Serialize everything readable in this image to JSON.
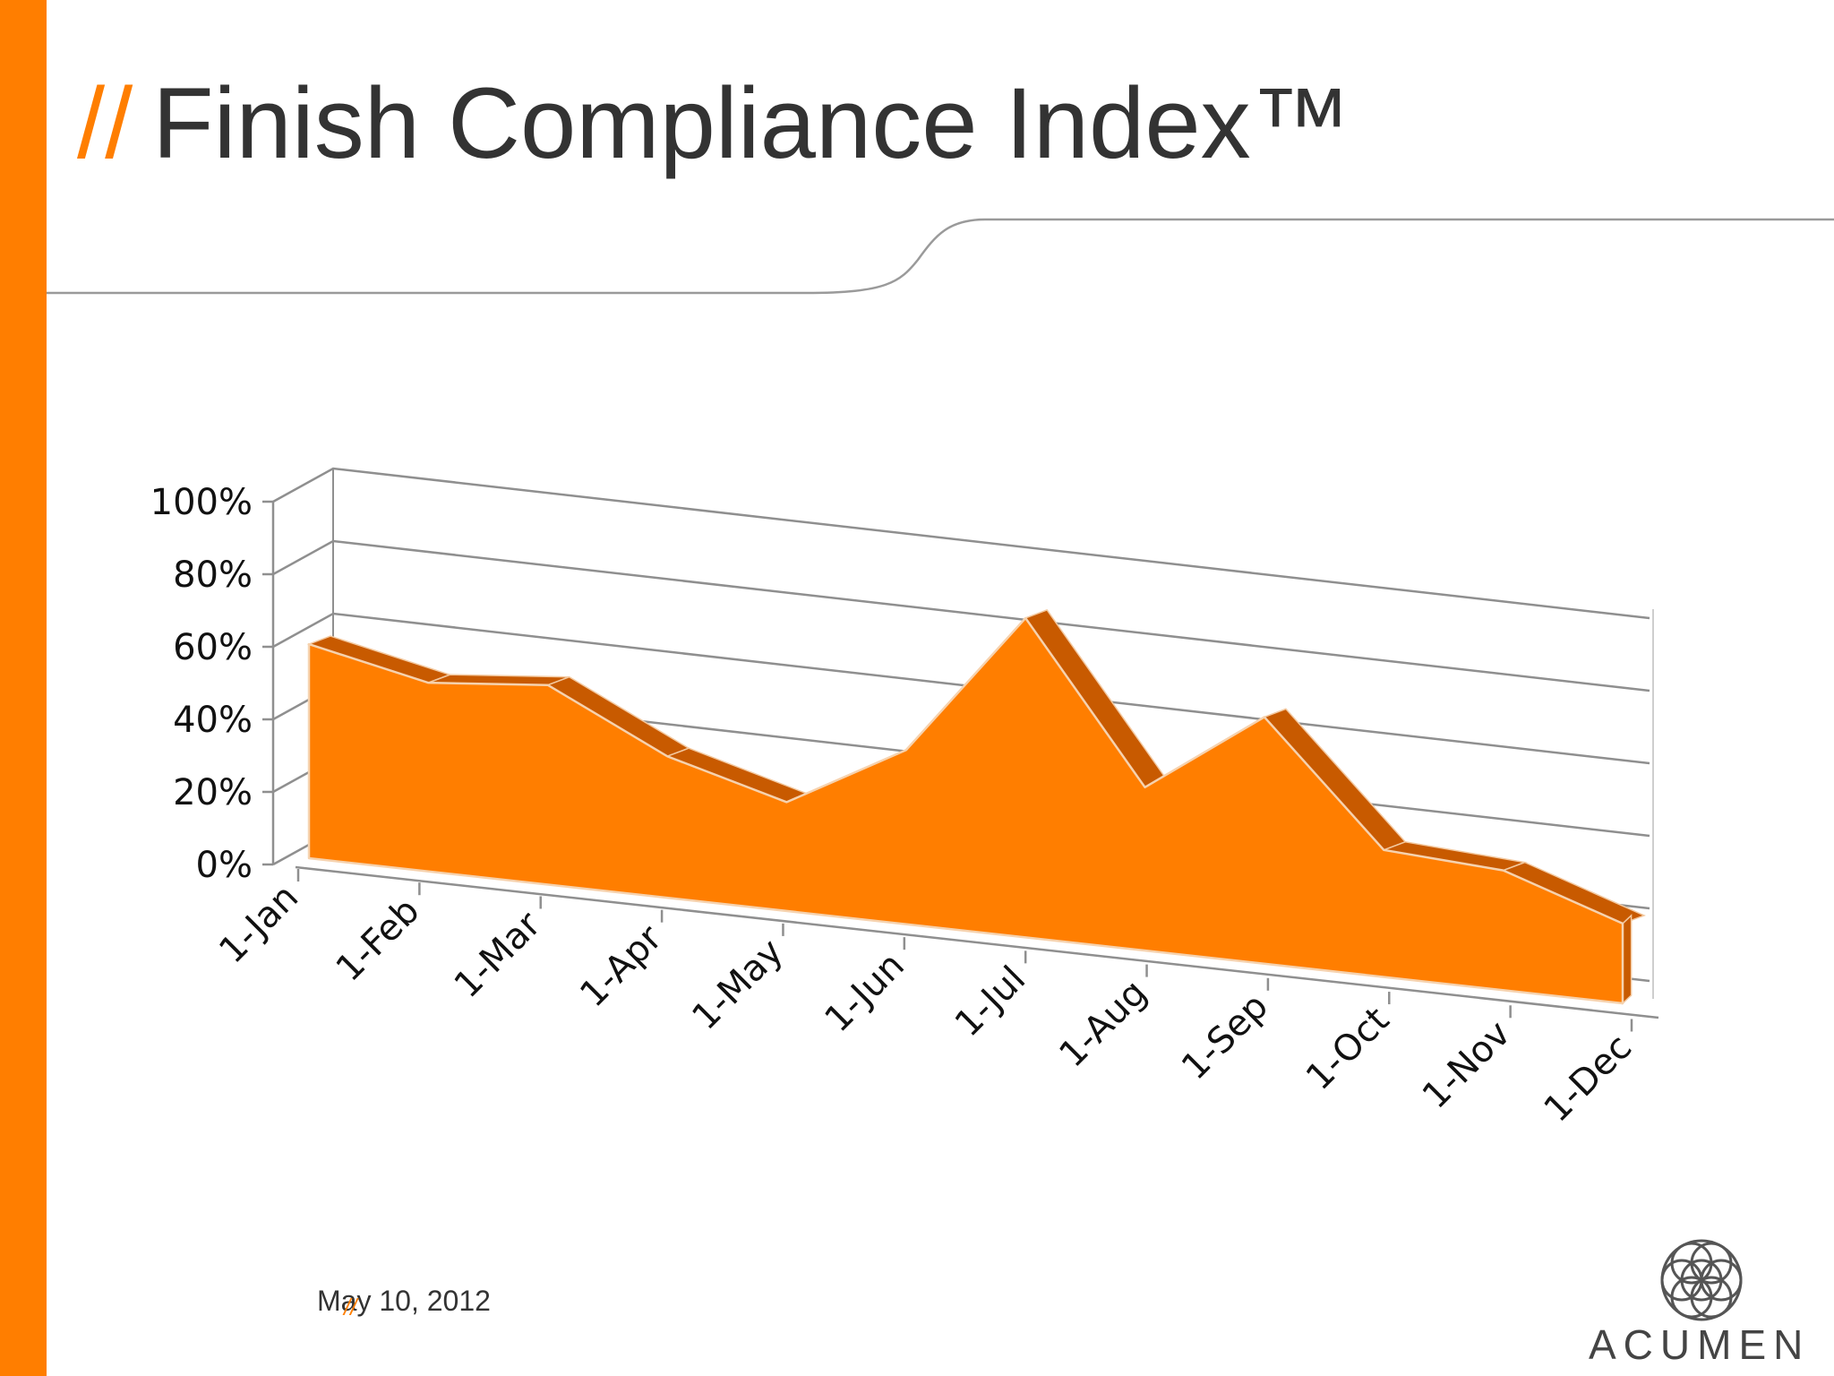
{
  "slide": {
    "title_prefix": "//",
    "title": "Finish Compliance Index™",
    "footer_date": "May 10, 2012",
    "footer_mark": "//",
    "logo_text": "ACUMEN",
    "logo_icon": "flower-of-life-icon"
  },
  "colors": {
    "accent": "#FF7E00",
    "accent_dark": "#C85A00",
    "title_text": "#333333",
    "rule": "#9A9A9A",
    "logo": "#555555"
  },
  "chart_data": {
    "type": "area",
    "style": "3d",
    "title": "",
    "xlabel": "",
    "ylabel": "",
    "categories": [
      "1-Jan",
      "1-Feb",
      "1-Mar",
      "1-Apr",
      "1-May",
      "1-Jun",
      "1-Jul",
      "1-Aug",
      "1-Sep",
      "1-Oct",
      "1-Nov",
      "1-Dec"
    ],
    "series": [
      {
        "values": [
          0.59,
          0.52,
          0.55,
          0.39,
          0.3,
          0.48,
          0.88,
          0.45,
          0.68,
          0.35,
          0.33,
          0.22
        ]
      }
    ],
    "y_ticks": [
      "0%",
      "20%",
      "40%",
      "60%",
      "80%",
      "100%"
    ],
    "ylim": [
      0,
      1
    ],
    "grid": true,
    "legend": "none"
  }
}
